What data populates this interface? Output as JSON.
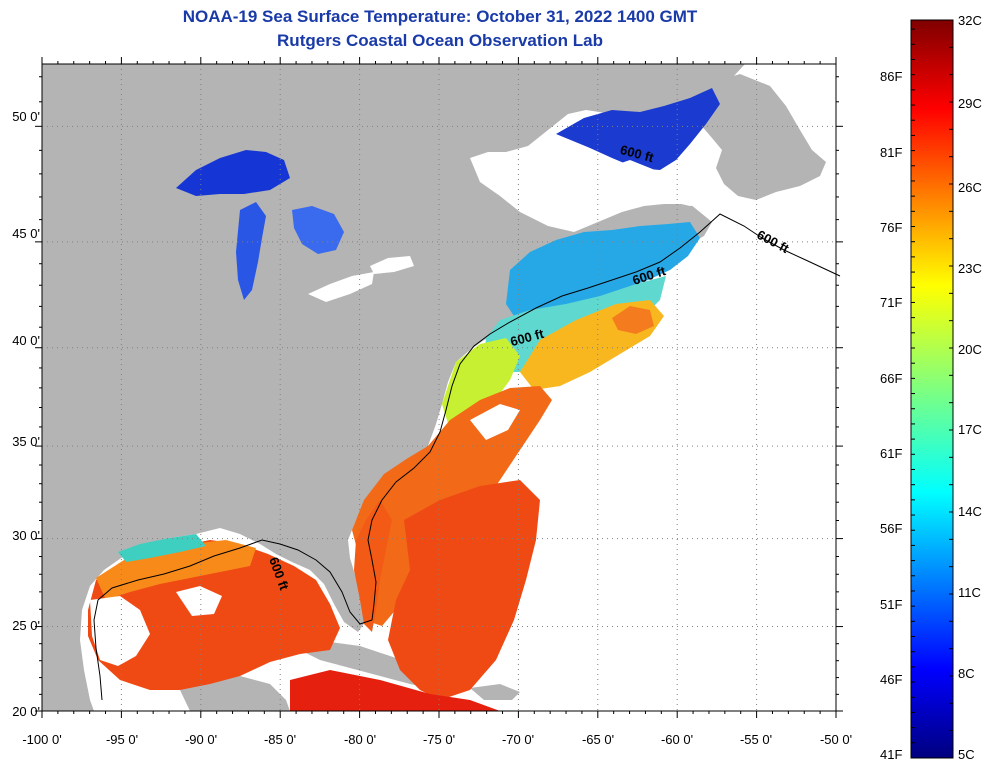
{
  "title": "NOAA-19 Sea Surface Temperature:  October 31, 2022 1400 GMT",
  "subtitle": "Rutgers Coastal Ocean Observation Lab",
  "map": {
    "lon_ticks": [
      "-100 0'",
      "-95 0'",
      "-90 0'",
      "-85 0'",
      "-80 0'",
      "-75 0'",
      "-70 0'",
      "-65 0'",
      "-60 0'",
      "-55 0'",
      "-50 0'"
    ],
    "lat_ticks": [
      "50 0'",
      "45 0'",
      "40 0'",
      "35 0'",
      "30 0'",
      "25 0'",
      "20 0'"
    ],
    "lon_range": [
      -100,
      -50
    ],
    "lat_range": [
      20,
      52.5
    ],
    "contour_labels": [
      "600 ft",
      "600 ft",
      "600 ft",
      "600 ft",
      "600 ft"
    ],
    "colors": {
      "land": "#b4b4b4",
      "no_data": "#ffffff",
      "graticule": "#808080"
    }
  },
  "colorbar": {
    "top_label_c": "32C",
    "bottom_label_c": "5C",
    "bottom_label_f": "41F",
    "celsius_labels": [
      "29C",
      "26C",
      "23C",
      "20C",
      "17C",
      "14C",
      "11C",
      "8C"
    ],
    "fahrenheit_labels": [
      "86F",
      "81F",
      "76F",
      "71F",
      "66F",
      "61F",
      "56F",
      "51F",
      "46F"
    ],
    "range_c": [
      5,
      32
    ]
  }
}
